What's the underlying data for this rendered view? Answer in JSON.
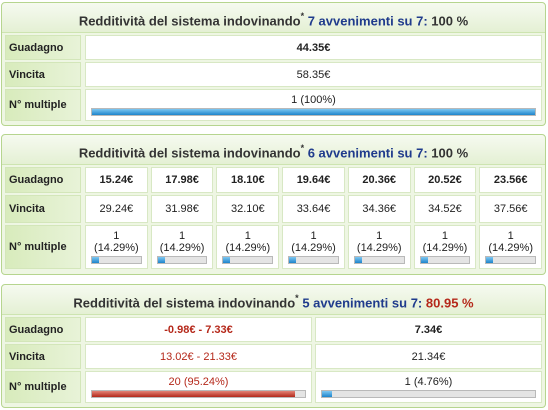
{
  "colors": {
    "blue_bar": "#1e84cb",
    "red_bar": "#b3281a",
    "label_bg": "#d8ebbc",
    "panel_border": "#b6d58f"
  },
  "labels": {
    "guadagno": "Guadagno",
    "vincita": "Vincita",
    "multiple": "N° multiple"
  },
  "panels": [
    {
      "title_main": "Redditività del sistema indovinando",
      "title_star": "*",
      "title_events": "7 avvenimenti su 7:",
      "title_pct": "100 %",
      "columns": [
        {
          "guadagno": "44.35€",
          "vincita": "58.35€",
          "count": "1 (100%)",
          "fraction": 1.0
        }
      ]
    },
    {
      "title_main": "Redditività del sistema indovinando",
      "title_star": "*",
      "title_events": "6 avvenimenti su 7:",
      "title_pct": "100 %",
      "columns": [
        {
          "guadagno": "15.24€",
          "vincita": "29.24€",
          "count": "1",
          "pct": "(14.29%)",
          "fraction": 0.1429
        },
        {
          "guadagno": "17.98€",
          "vincita": "31.98€",
          "count": "1",
          "pct": "(14.29%)",
          "fraction": 0.1429
        },
        {
          "guadagno": "18.10€",
          "vincita": "32.10€",
          "count": "1",
          "pct": "(14.29%)",
          "fraction": 0.1429
        },
        {
          "guadagno": "19.64€",
          "vincita": "33.64€",
          "count": "1",
          "pct": "(14.29%)",
          "fraction": 0.1429
        },
        {
          "guadagno": "20.36€",
          "vincita": "34.36€",
          "count": "1",
          "pct": "(14.29%)",
          "fraction": 0.1429
        },
        {
          "guadagno": "20.52€",
          "vincita": "34.52€",
          "count": "1",
          "pct": "(14.29%)",
          "fraction": 0.1429
        },
        {
          "guadagno": "23.56€",
          "vincita": "37.56€",
          "count": "1",
          "pct": "(14.29%)",
          "fraction": 0.1429
        }
      ]
    },
    {
      "title_main": "Redditività del sistema indovinando",
      "title_star": "*",
      "title_events": "5 avvenimenti su 7:",
      "title_pct": "80.95 %",
      "columns": [
        {
          "guadagno": "-0.98€ - 7.33€",
          "vincita": "13.02€ - 21.33€",
          "count": "20 (95.24%)",
          "fraction": 0.9524,
          "negative": true
        },
        {
          "guadagno": "7.34€",
          "vincita": "21.34€",
          "count": "1 (4.76%)",
          "fraction": 0.0476
        }
      ]
    }
  ]
}
